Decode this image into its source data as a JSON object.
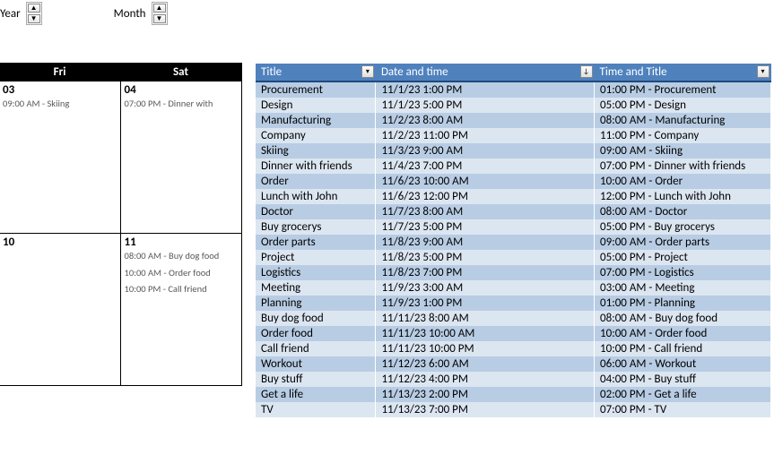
{
  "controls": {
    "year_label": "Year",
    "month_label": "Month"
  },
  "calendar": {
    "headers": [
      "Fri",
      "Sat"
    ],
    "weeks": [
      {
        "days": [
          {
            "num": "03",
            "events": [
              "09:00 AM - Skiing"
            ]
          },
          {
            "num": "04",
            "events": [
              "07:00 PM - Dinner with"
            ]
          }
        ]
      },
      {
        "days": [
          {
            "num": "10",
            "events": []
          },
          {
            "num": "11",
            "events": [
              "08:00 AM - Buy dog food",
              "10:00 AM - Order food",
              "10:00 PM - Call friend"
            ]
          }
        ]
      }
    ]
  },
  "table": {
    "headers": {
      "title": "Title",
      "date": "Date and time",
      "timetitle": "Time and Title"
    },
    "rows": [
      {
        "title": "Procurement",
        "date": "11/1/23 1:00 PM",
        "tt": "01:00 PM - Procurement"
      },
      {
        "title": "Design",
        "date": "11/1/23 5:00 PM",
        "tt": "05:00 PM - Design"
      },
      {
        "title": "Manufacturing",
        "date": "11/2/23 8:00 AM",
        "tt": "08:00 AM - Manufacturing"
      },
      {
        "title": "Company",
        "date": "11/2/23 11:00 PM",
        "tt": "11:00 PM - Company"
      },
      {
        "title": "Skiing",
        "date": "11/3/23 9:00 AM",
        "tt": "09:00 AM - Skiing"
      },
      {
        "title": "Dinner with friends",
        "date": "11/4/23 7:00 PM",
        "tt": "07:00 PM - Dinner with friends"
      },
      {
        "title": "Order",
        "date": "11/6/23 10:00 AM",
        "tt": "10:00 AM - Order"
      },
      {
        "title": "Lunch with John",
        "date": "11/6/23 12:00 PM",
        "tt": "12:00 PM - Lunch with John"
      },
      {
        "title": "Doctor",
        "date": "11/7/23 8:00 AM",
        "tt": "08:00 AM - Doctor"
      },
      {
        "title": "Buy grocerys",
        "date": "11/7/23 5:00 PM",
        "tt": "05:00 PM - Buy grocerys"
      },
      {
        "title": "Order parts",
        "date": "11/8/23 9:00 AM",
        "tt": "09:00 AM - Order parts"
      },
      {
        "title": "Project",
        "date": "11/8/23 5:00 PM",
        "tt": "05:00 PM - Project"
      },
      {
        "title": "Logistics",
        "date": "11/8/23 7:00 PM",
        "tt": "07:00 PM - Logistics"
      },
      {
        "title": "Meeting",
        "date": "11/9/23 3:00 AM",
        "tt": "03:00 AM - Meeting"
      },
      {
        "title": "Planning",
        "date": "11/9/23 1:00 PM",
        "tt": "01:00 PM - Planning"
      },
      {
        "title": "Buy dog food",
        "date": "11/11/23 8:00 AM",
        "tt": "08:00 AM - Buy dog food"
      },
      {
        "title": "Order food",
        "date": "11/11/23 10:00 AM",
        "tt": "10:00 AM - Order food"
      },
      {
        "title": "Call friend",
        "date": "11/11/23 10:00 PM",
        "tt": "10:00 PM - Call friend"
      },
      {
        "title": "Workout",
        "date": "11/12/23 6:00 AM",
        "tt": "06:00 AM - Workout"
      },
      {
        "title": "Buy stuff",
        "date": "11/12/23 4:00 PM",
        "tt": "04:00 PM - Buy stuff"
      },
      {
        "title": "Get a life",
        "date": "11/13/23 2:00 PM",
        "tt": "02:00 PM - Get a life"
      },
      {
        "title": "TV",
        "date": "11/13/23 7:00 PM",
        "tt": "07:00 PM - TV"
      }
    ]
  }
}
